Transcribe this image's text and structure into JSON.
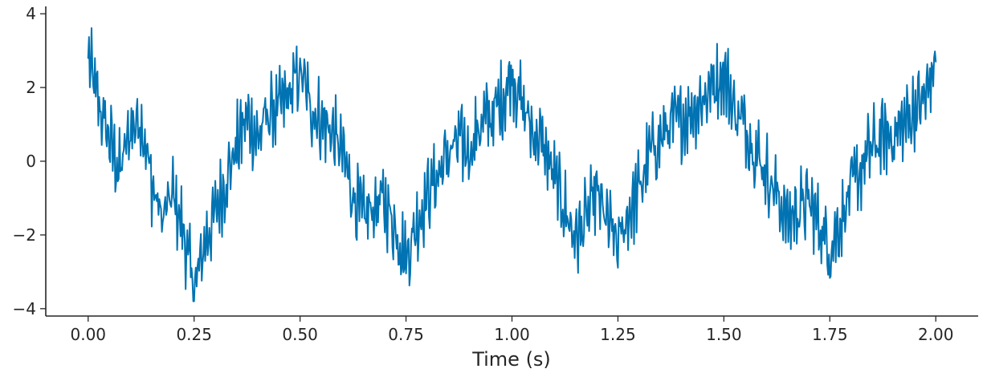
{
  "chart_data": {
    "type": "line",
    "title": "",
    "xlabel": "Time (s)",
    "ylabel": "",
    "xlim": [
      -0.1,
      2.1
    ],
    "ylim": [
      -4.2,
      4.2
    ],
    "xticks": [
      0.0,
      0.25,
      0.5,
      0.75,
      1.0,
      1.25,
      1.5,
      1.75,
      2.0
    ],
    "xtick_labels": [
      "0.00",
      "0.25",
      "0.50",
      "0.75",
      "1.00",
      "1.25",
      "1.50",
      "1.75",
      "2.00"
    ],
    "yticks": [
      -4,
      -2,
      0,
      2,
      4
    ],
    "ytick_labels": [
      "−4",
      "−2",
      "0",
      "2",
      "4"
    ],
    "grid": false,
    "legend": "none",
    "colors": {
      "series": "#0173b2",
      "axes": "#262626"
    },
    "series": [
      {
        "x": [
          0.0,
          0.025,
          0.05,
          0.075,
          0.1,
          0.125,
          0.15,
          0.175,
          0.2,
          0.225,
          0.25,
          0.275,
          0.3,
          0.325,
          0.35,
          0.375,
          0.4,
          0.425,
          0.45,
          0.475,
          0.5,
          0.525,
          0.55,
          0.575,
          0.6,
          0.625,
          0.65,
          0.675,
          0.7,
          0.725,
          0.75,
          0.775,
          0.8,
          0.825,
          0.85,
          0.875,
          0.9,
          0.925,
          0.95,
          0.975,
          1.0,
          1.025,
          1.05,
          1.075,
          1.1,
          1.125,
          1.15,
          1.175,
          1.2,
          1.225,
          1.25,
          1.275,
          1.3,
          1.325,
          1.35,
          1.375,
          1.4,
          1.425,
          1.45,
          1.475,
          1.5,
          1.525,
          1.55,
          1.575,
          1.6,
          1.625,
          1.65,
          1.675,
          1.7,
          1.725,
          1.75,
          1.775,
          1.8,
          1.825,
          1.85,
          1.875,
          1.9,
          1.925,
          1.95,
          1.975,
          2.0
        ],
        "y": [
          2.8,
          1.5,
          0.6,
          -0.3,
          0.9,
          1.2,
          -0.6,
          -1.6,
          -0.9,
          -1.9,
          -3.6,
          -2.2,
          -1.4,
          -0.5,
          0.4,
          1.2,
          0.6,
          1.3,
          1.4,
          1.8,
          2.4,
          1.5,
          1.1,
          0.8,
          0.2,
          -0.9,
          -1.6,
          -1.2,
          -1.1,
          -1.8,
          -2.6,
          -1.7,
          -0.9,
          -0.4,
          0.2,
          0.5,
          0.3,
          1.0,
          1.2,
          1.6,
          2.4,
          1.5,
          0.8,
          0.4,
          -0.5,
          -1.3,
          -2.1,
          -1.6,
          -0.9,
          -1.7,
          -2.3,
          -1.4,
          -0.8,
          0.2,
          0.6,
          1.0,
          1.1,
          1.4,
          1.7,
          2.1,
          2.4,
          1.4,
          1.0,
          0.3,
          -0.3,
          -0.9,
          -1.6,
          -1.3,
          -1.1,
          -1.7,
          -2.4,
          -1.6,
          -0.8,
          -0.2,
          0.4,
          0.6,
          0.7,
          1.0,
          1.4,
          1.7,
          2.7
        ]
      }
    ]
  }
}
